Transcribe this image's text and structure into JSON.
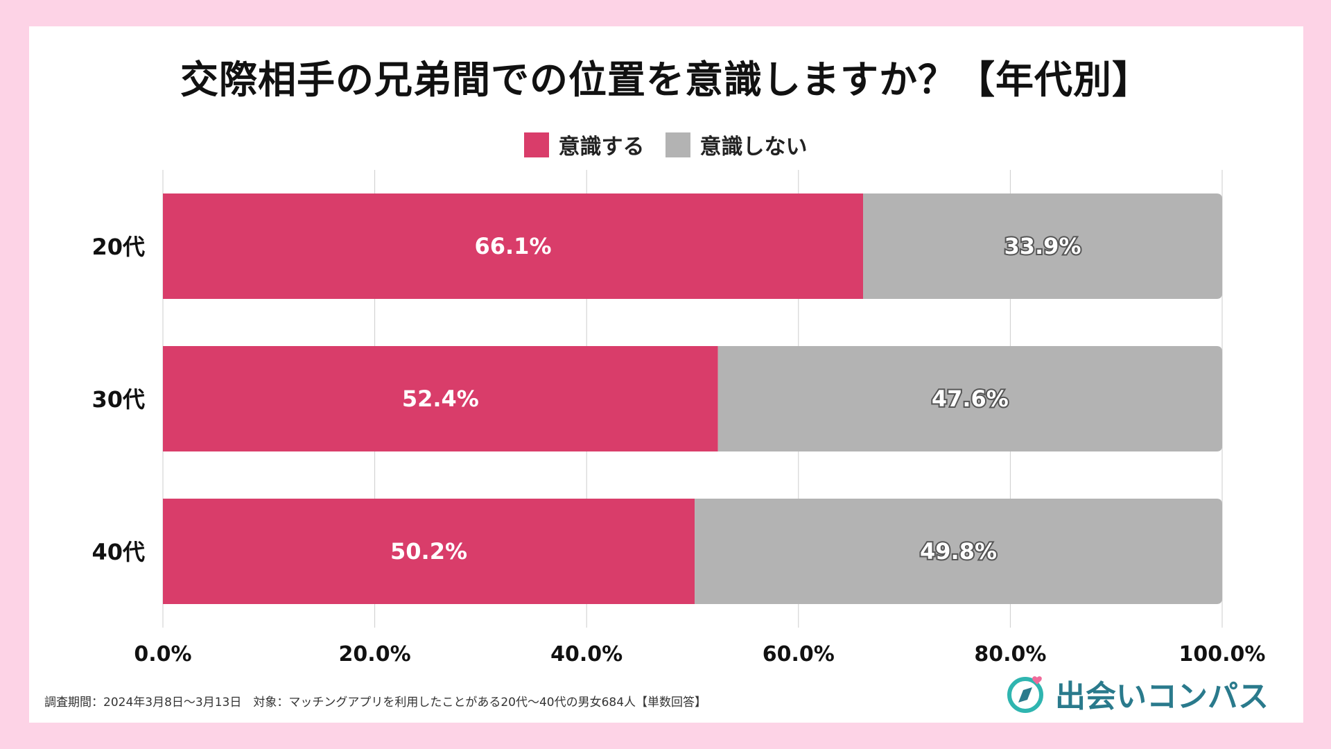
{
  "colors": {
    "aware": "#d93d6a",
    "not_aware": "#b3b3b3",
    "grid": "#cccccc",
    "brand": "#2a7a8c",
    "accent_heart": "#f06a9a"
  },
  "chart_data": {
    "type": "bar",
    "orientation": "horizontal-stacked-100",
    "title": "交際相手の兄弟間での位置を意識しますか？【年代別】",
    "categories": [
      "20代",
      "30代",
      "40代"
    ],
    "series": [
      {
        "name": "意識する",
        "values": [
          66.1,
          52.4,
          50.2
        ],
        "labels": [
          "66.1%",
          "52.4%",
          "50.2%"
        ]
      },
      {
        "name": "意識しない",
        "values": [
          33.9,
          47.6,
          49.8
        ],
        "labels": [
          "33.9%",
          "47.6%",
          "49.8%"
        ]
      }
    ],
    "xlim": [
      0,
      100
    ],
    "xticks": [
      0,
      20,
      40,
      60,
      80,
      100
    ],
    "xtick_labels": [
      "0.0%",
      "20.0%",
      "40.0%",
      "60.0%",
      "80.0%",
      "100.0%"
    ],
    "legend_position": "top-center",
    "grid": true
  },
  "footnote": "調査期間：2024年3月8日〜3月13日　対象：マッチングアプリを利用したことがある20代〜40代の男女684人【単数回答】",
  "brand": {
    "name": "出会いコンパス",
    "icon": "compass-heart-icon"
  }
}
